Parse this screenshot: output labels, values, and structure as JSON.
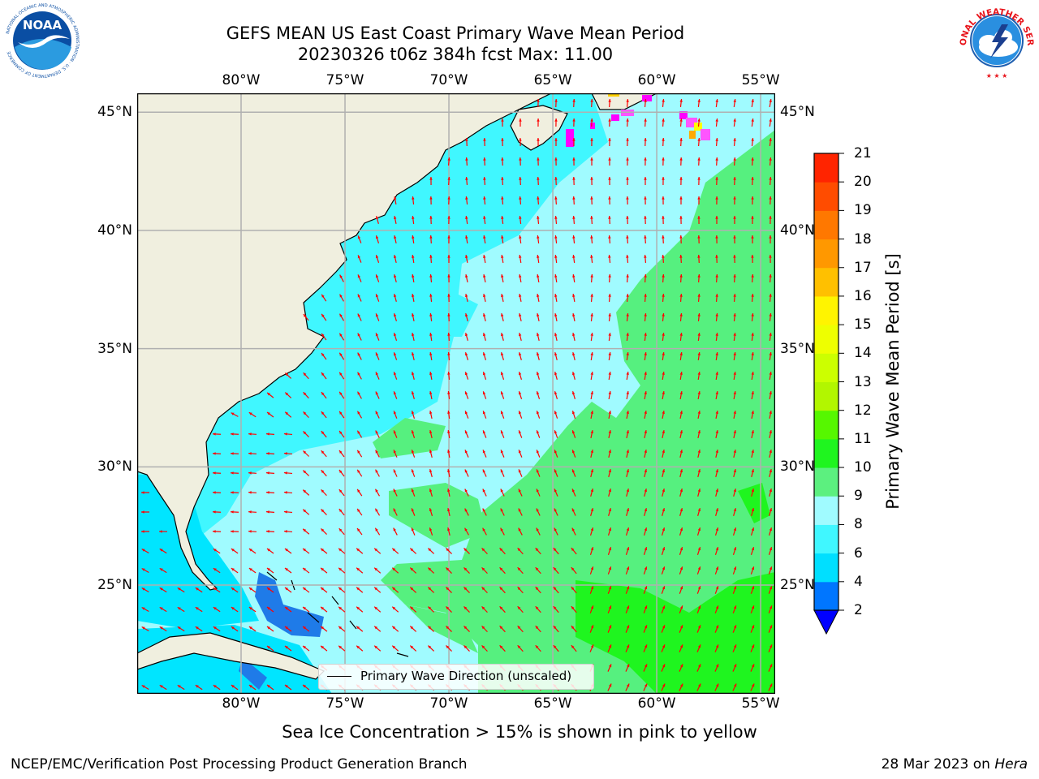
{
  "title": {
    "line1": "GEFS MEAN US East Coast Primary Wave Mean Period",
    "line2": "20230326 t06z 384h fcst   Max: 11.00"
  },
  "map": {
    "lon_labels": [
      "80°W",
      "75°W",
      "70°W",
      "65°W",
      "60°W",
      "55°W"
    ],
    "lat_labels": [
      "45°N",
      "40°N",
      "35°N",
      "30°N",
      "25°N"
    ],
    "lon_range": [
      -85,
      -54.3
    ],
    "lat_range": [
      20.4,
      45.8
    ],
    "grid": true,
    "vector_color": "#ff0000",
    "legend": {
      "label": "Primary Wave Direction (unscaled)",
      "position": "bottom-center"
    }
  },
  "colorbar": {
    "label": "Primary Wave Mean Period [s]",
    "ticks": [
      "2",
      "4",
      "6",
      "8",
      "9",
      "10",
      "11",
      "12",
      "13",
      "14",
      "15",
      "16",
      "17",
      "18",
      "19",
      "20",
      "21"
    ],
    "colors": [
      "#0076ff",
      "#00dfff",
      "#40f7ff",
      "#a0fbff",
      "#5cf07f",
      "#1ff51f",
      "#56f700",
      "#b2f600",
      "#ccff00",
      "#eeff00",
      "#fff400",
      "#ffc000",
      "#ff9800",
      "#ff7800",
      "#ff4c00",
      "#ff2400",
      "#ff0000"
    ],
    "extend_under_color": "#0000ff"
  },
  "subtitle": "Sea Ice Concentration > 15% is shown in pink to yellow",
  "footer": {
    "left": "NCEP/EMC/Verification Post Processing Product Generation Branch",
    "right_date": "28 Mar 2023 on ",
    "right_host": "Hera"
  },
  "logos": {
    "noaa": "NOAA",
    "nws_arc": "NATIONAL WEATHER SERVICE"
  },
  "colors": {
    "land": "#f0efdf",
    "coast": "#000000",
    "grid": "#b0b0b0"
  }
}
